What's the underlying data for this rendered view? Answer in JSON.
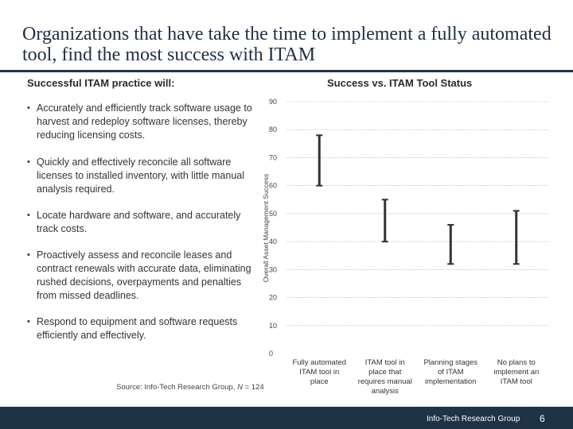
{
  "slide": {
    "title": "Organizations that have take the time to implement a fully automated tool, find the most success with ITAM",
    "left_heading": "Successful ITAM practice will:",
    "bullets": [
      "Accurately and efficiently track software usage to harvest and redeploy software licenses, thereby reducing licensing costs.",
      "Quickly and effectively reconcile all software licenses to installed inventory, with little manual analysis required.",
      "Locate hardware and software, and accurately track costs.",
      "Proactively assess and reconcile leases and contract renewals with accurate data, eliminating rushed decisions, overpayments and penalties from missed deadlines.",
      "Respond to equipment and software requests efficiently and effectively."
    ],
    "bullet_marker": "•",
    "source_prefix": "Source: Info-Tech Research Group, ",
    "source_n": "N",
    "source_suffix": " = 124",
    "footer_org": "Info-Tech Research Group",
    "page_number": "6"
  },
  "colors": {
    "title": "#1f2f44",
    "footer_bg": "#1f3346",
    "error_bar": "#333333",
    "gridline": "#aaaaaa"
  },
  "chart_data": {
    "type": "error_bar",
    "title": "Success vs. ITAM Tool Status",
    "ylabel": "Overall Asset Management Success",
    "xlabel": "",
    "ylim": [
      0,
      90
    ],
    "yticks": [
      0,
      10,
      20,
      30,
      40,
      50,
      60,
      70,
      80,
      90
    ],
    "grid": true,
    "categories": [
      "Fully automated ITAM tool in place",
      "ITAM tool in place that requires manual analysis",
      "Planning stages of ITAM implementation",
      "No plans to implement an ITAM tool"
    ],
    "category_lines": [
      [
        "Fully automated",
        "ITAM tool in",
        "place"
      ],
      [
        "ITAM tool in",
        "place that",
        "requires manual",
        "analysis"
      ],
      [
        "Planning stages",
        "of ITAM",
        "implementation"
      ],
      [
        "No plans to",
        "implement an",
        "ITAM tool"
      ]
    ],
    "ranges": [
      {
        "low": 60,
        "high": 78
      },
      {
        "low": 40,
        "high": 55
      },
      {
        "low": 32,
        "high": 46
      },
      {
        "low": 32,
        "high": 51
      }
    ]
  }
}
